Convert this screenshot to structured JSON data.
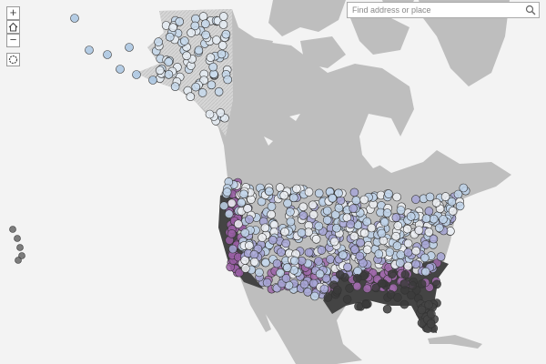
{
  "search": {
    "placeholder": "Find address or place"
  },
  "zoom_controls": {
    "zoom_in": "+",
    "zoom_out": "−"
  }
}
